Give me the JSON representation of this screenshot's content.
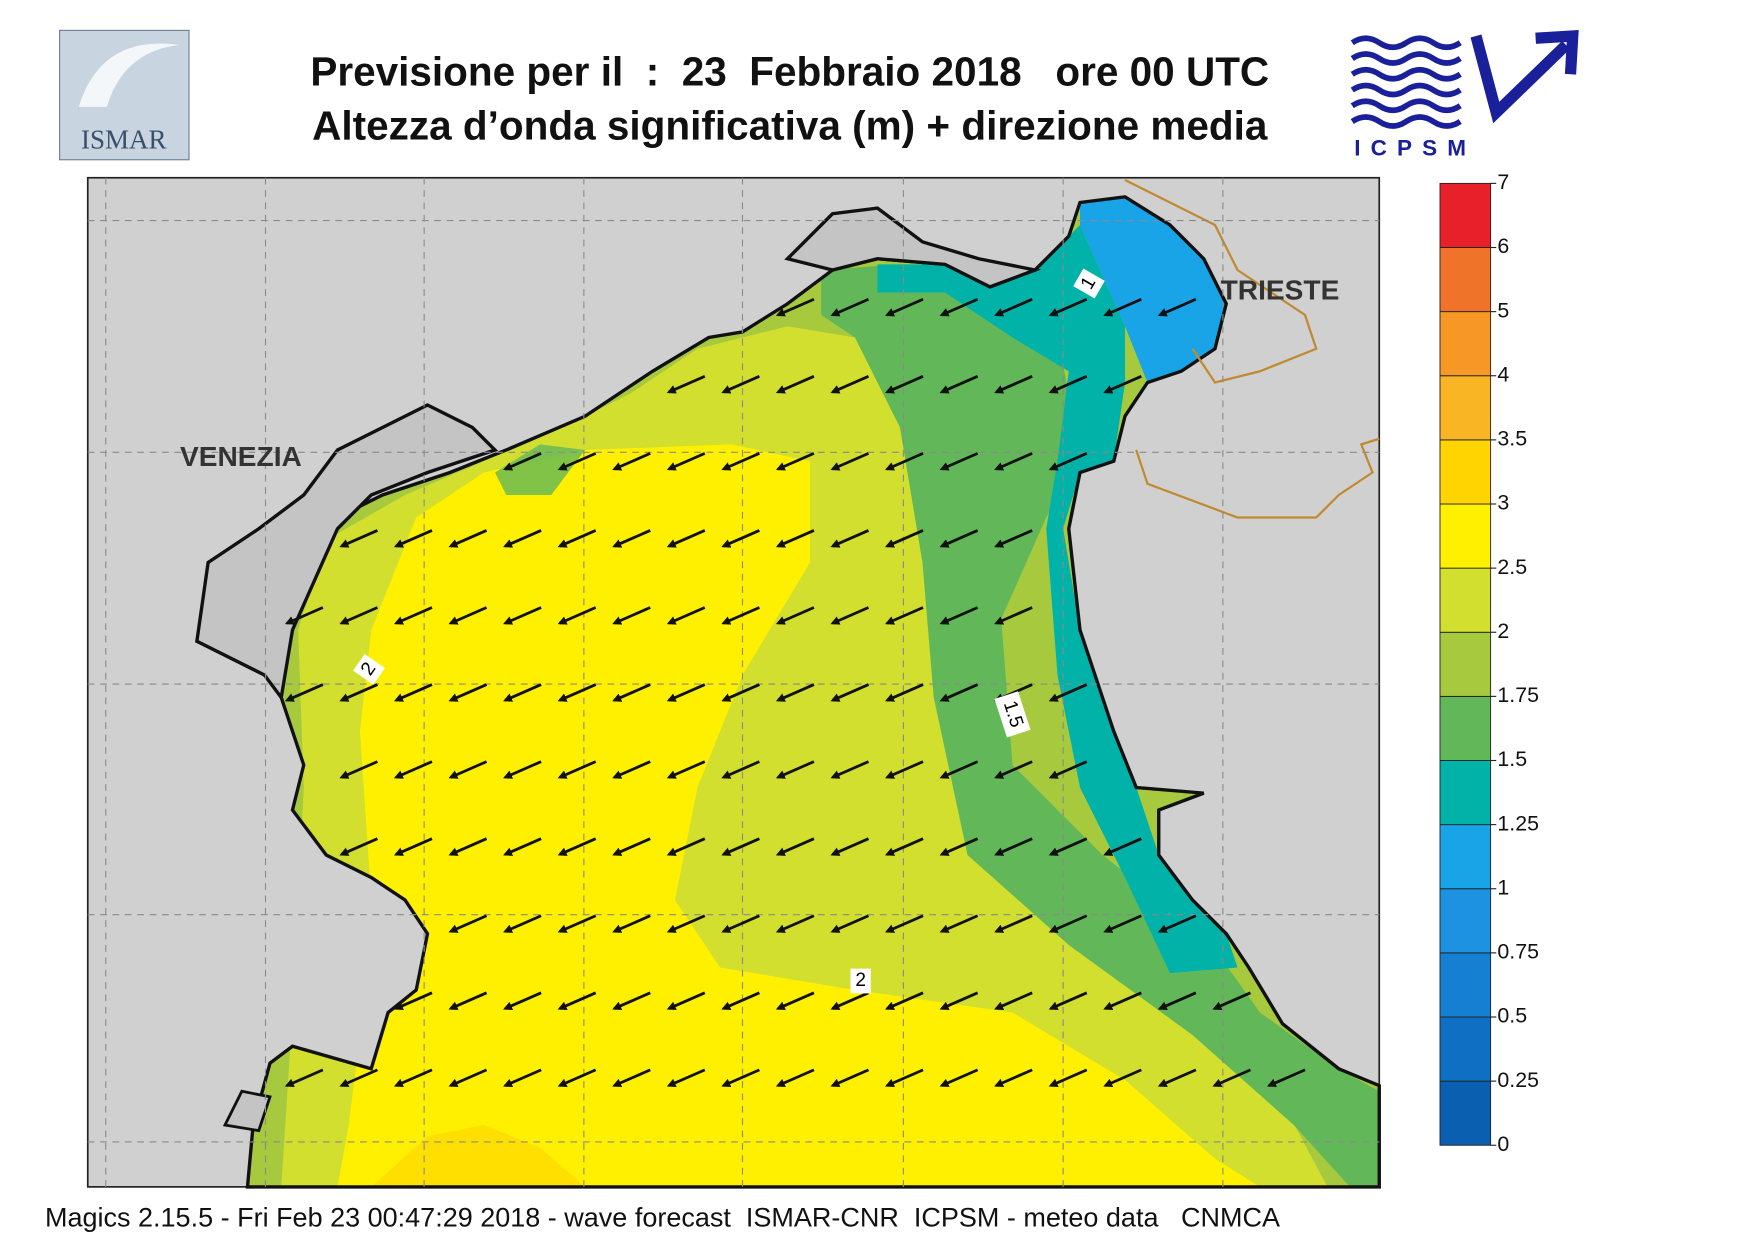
{
  "header": {
    "title_lines": [
      "Previsione per il  :  23  Febbraio 2018   ore 00 UTC",
      "Altezza d’onda significativa (m) + direzione media"
    ]
  },
  "logos": {
    "left": "ISMAR",
    "right": "ICPSM"
  },
  "map": {
    "places": [
      "VENEZIA",
      "TRIESTE"
    ],
    "contour_labels": [
      "1",
      "1.5",
      "2",
      "2"
    ]
  },
  "colorbar": {
    "levels": [
      0,
      0.25,
      0.5,
      0.75,
      1,
      1.25,
      1.5,
      1.75,
      2,
      2.5,
      3,
      3.5,
      4,
      5,
      6,
      7
    ],
    "colors": [
      "#0a5fb0",
      "#0f6fc2",
      "#1580d2",
      "#1c92e0",
      "#18a4e6",
      "#00b2a8",
      "#62b858",
      "#a6c93e",
      "#d2df2e",
      "#fff000",
      "#ffd400",
      "#f9b524",
      "#f79726",
      "#ef7429",
      "#e8202a",
      "#e8146c"
    ]
  },
  "footer": "Magics 2.15.5 - Fri Feb 23 00:47:29 2018 - wave forecast  ISMAR-CNR  ICPSM - meteo data   CNMCA"
}
